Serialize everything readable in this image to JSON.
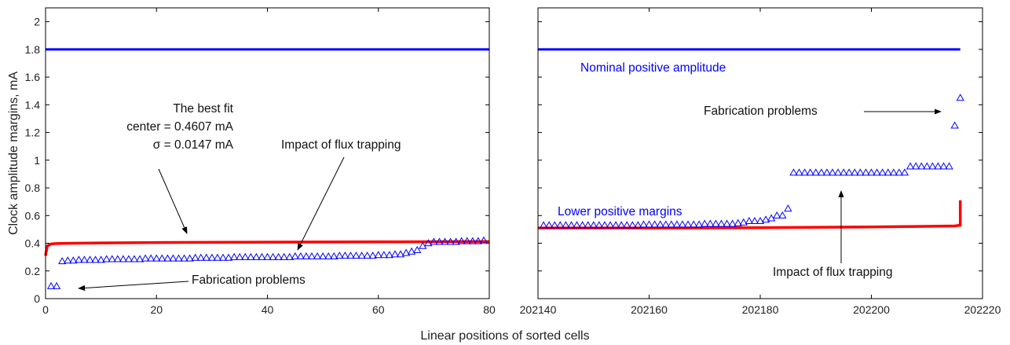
{
  "colors": {
    "blue": "#0000ff",
    "red": "#ff0000",
    "axis": "#000000",
    "text": "#111111"
  },
  "xlabel": "Linear positions of sorted cells",
  "chart_data": [
    {
      "type": "scatter",
      "panel": "left",
      "ylabel": "Clock amplitude margins, mA",
      "xlim": [
        0,
        80
      ],
      "ylim": [
        0,
        2.1
      ],
      "xticks": [
        "0",
        "20",
        "40",
        "60",
        "80"
      ],
      "yticks": [
        "0",
        "0.2",
        "0.4",
        "0.6",
        "0.8",
        "1",
        "1.2",
        "1.4",
        "1.6",
        "1.8",
        "2"
      ],
      "series": [
        {
          "kind": "line",
          "color": "#0000ff",
          "x": [
            0,
            80
          ],
          "y": [
            1.8,
            1.8
          ]
        },
        {
          "kind": "line",
          "color": "#ff0000",
          "x": [
            0,
            0.3,
            1,
            2,
            5,
            10,
            20,
            40,
            60,
            80
          ],
          "y": [
            0.31,
            0.38,
            0.395,
            0.398,
            0.4,
            0.402,
            0.405,
            0.408,
            0.41,
            0.412
          ]
        },
        {
          "kind": "markers",
          "color": "#0000ff",
          "x": [
            1,
            2,
            3,
            4,
            5,
            6,
            7,
            8,
            9,
            10,
            11,
            12,
            13,
            14,
            15,
            16,
            17,
            18,
            19,
            20,
            21,
            22,
            23,
            24,
            25,
            26,
            27,
            28,
            29,
            30,
            31,
            32,
            33,
            34,
            35,
            36,
            37,
            38,
            39,
            40,
            41,
            42,
            43,
            44,
            45,
            46,
            47,
            48,
            49,
            50,
            51,
            52,
            53,
            54,
            55,
            56,
            57,
            58,
            59,
            60,
            61,
            62,
            63,
            64,
            65,
            66,
            67,
            68,
            69,
            70,
            71,
            72,
            73,
            74,
            75,
            76,
            77,
            78,
            79
          ],
          "y": [
            0.09,
            0.09,
            0.27,
            0.275,
            0.275,
            0.28,
            0.28,
            0.28,
            0.28,
            0.28,
            0.285,
            0.285,
            0.285,
            0.285,
            0.285,
            0.285,
            0.285,
            0.29,
            0.29,
            0.29,
            0.29,
            0.29,
            0.29,
            0.29,
            0.29,
            0.29,
            0.295,
            0.295,
            0.295,
            0.295,
            0.295,
            0.295,
            0.295,
            0.3,
            0.3,
            0.3,
            0.3,
            0.3,
            0.3,
            0.3,
            0.3,
            0.3,
            0.3,
            0.3,
            0.305,
            0.305,
            0.305,
            0.305,
            0.305,
            0.305,
            0.305,
            0.305,
            0.31,
            0.31,
            0.31,
            0.31,
            0.31,
            0.31,
            0.31,
            0.315,
            0.315,
            0.315,
            0.32,
            0.32,
            0.33,
            0.34,
            0.35,
            0.38,
            0.4,
            0.41,
            0.41,
            0.41,
            0.41,
            0.41,
            0.415,
            0.415,
            0.415,
            0.415,
            0.42
          ]
        }
      ],
      "annotations": [
        {
          "id": "best_fit_title",
          "text": "The best fit"
        },
        {
          "id": "best_fit_center",
          "text": "center = 0.4607 mA"
        },
        {
          "id": "best_fit_sigma",
          "text": "σ = 0.0147 mA"
        },
        {
          "id": "flux_trapping",
          "text": "Impact of flux trapping"
        },
        {
          "id": "fabrication",
          "text": "Fabrication problems"
        }
      ]
    },
    {
      "type": "scatter",
      "panel": "right",
      "xlim": [
        202140,
        202220
      ],
      "ylim": [
        0,
        2.1
      ],
      "xticks": [
        "202140",
        "202160",
        "202180",
        "202200",
        "202220"
      ],
      "series": [
        {
          "kind": "line",
          "color": "#0000ff",
          "x": [
            202140,
            202216
          ],
          "y": [
            1.8,
            1.8
          ]
        },
        {
          "kind": "line",
          "color": "#ff0000",
          "x": [
            202140,
            202160,
            202180,
            202200,
            202210,
            202215,
            202215.6,
            202215.8,
            202216,
            202216
          ],
          "y": [
            0.51,
            0.51,
            0.512,
            0.518,
            0.522,
            0.525,
            0.528,
            0.53,
            0.53,
            0.71
          ]
        },
        {
          "kind": "markers",
          "color": "#0000ff",
          "x": [
            202141,
            202142,
            202143,
            202144,
            202145,
            202146,
            202147,
            202148,
            202149,
            202150,
            202151,
            202152,
            202153,
            202154,
            202155,
            202156,
            202157,
            202158,
            202159,
            202160,
            202161,
            202162,
            202163,
            202164,
            202165,
            202166,
            202167,
            202168,
            202169,
            202170,
            202171,
            202172,
            202173,
            202174,
            202175,
            202176,
            202177,
            202178,
            202179,
            202180,
            202181,
            202182,
            202183,
            202184,
            202185,
            202186,
            202187,
            202188,
            202189,
            202190,
            202191,
            202192,
            202193,
            202194,
            202195,
            202196,
            202197,
            202198,
            202199,
            202200,
            202201,
            202202,
            202203,
            202204,
            202205,
            202206,
            202207,
            202208,
            202209,
            202210,
            202211,
            202212,
            202213,
            202214,
            202215,
            202216
          ],
          "y": [
            0.53,
            0.53,
            0.53,
            0.53,
            0.53,
            0.53,
            0.53,
            0.53,
            0.53,
            0.53,
            0.53,
            0.53,
            0.53,
            0.53,
            0.53,
            0.53,
            0.53,
            0.53,
            0.535,
            0.535,
            0.535,
            0.535,
            0.535,
            0.535,
            0.535,
            0.535,
            0.535,
            0.535,
            0.535,
            0.54,
            0.54,
            0.54,
            0.54,
            0.54,
            0.54,
            0.545,
            0.55,
            0.56,
            0.56,
            0.56,
            0.57,
            0.58,
            0.6,
            0.6,
            0.65,
            0.91,
            0.91,
            0.91,
            0.91,
            0.91,
            0.91,
            0.91,
            0.91,
            0.91,
            0.91,
            0.91,
            0.91,
            0.91,
            0.91,
            0.91,
            0.91,
            0.91,
            0.91,
            0.91,
            0.91,
            0.91,
            0.955,
            0.955,
            0.955,
            0.955,
            0.955,
            0.955,
            0.955,
            0.955,
            1.25,
            1.45
          ]
        }
      ],
      "annotations": [
        {
          "id": "nominal",
          "text": "Nominal positive amplitude"
        },
        {
          "id": "fabrication",
          "text": "Fabrication problems"
        },
        {
          "id": "lower_margins",
          "text": "Lower positive margins"
        },
        {
          "id": "flux_trapping",
          "text": "Impact of flux trapping"
        }
      ]
    }
  ]
}
